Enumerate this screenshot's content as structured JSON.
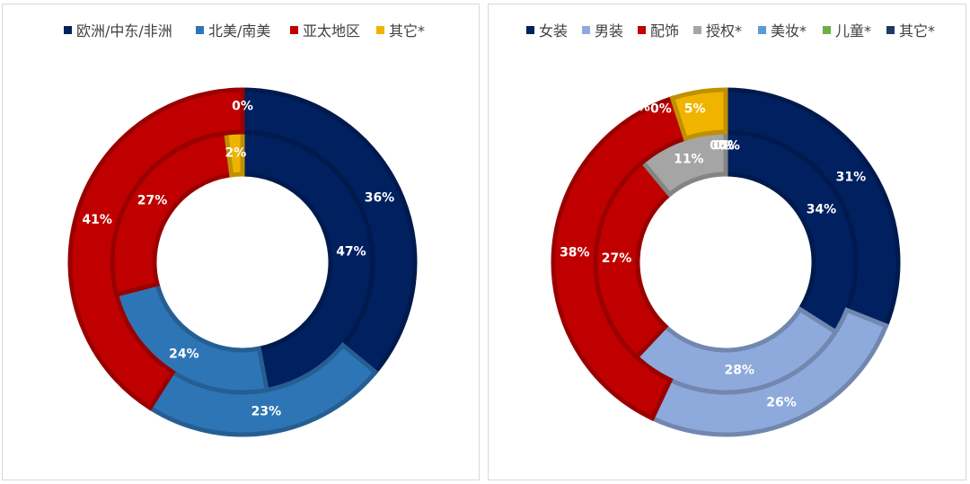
{
  "chart_data": [
    {
      "type": "pie",
      "subtype": "doughnut",
      "legend_position": "top",
      "legend": [
        {
          "name": "欧洲/中东/非洲",
          "color": "#002060"
        },
        {
          "name": "北美/南美",
          "color": "#2E75B6"
        },
        {
          "name": "亚太地区",
          "color": "#C00000"
        },
        {
          "name": "其它*",
          "color": "#F0B400"
        }
      ],
      "rings": [
        {
          "ring": "inner",
          "values": [
            47,
            24,
            27,
            2
          ],
          "labels": [
            "47%",
            "24%",
            "27%",
            "2%"
          ]
        },
        {
          "ring": "outer",
          "values": [
            36,
            23,
            41,
            0
          ],
          "labels": [
            "36%",
            "23%",
            "41%",
            "0%"
          ]
        }
      ]
    },
    {
      "type": "pie",
      "subtype": "doughnut",
      "legend_position": "top",
      "legend": [
        {
          "name": "女装",
          "color": "#002060"
        },
        {
          "name": "男装",
          "color": "#8EA9DB"
        },
        {
          "name": "配饰",
          "color": "#C00000"
        },
        {
          "name": "授权*",
          "color": "#A5A5A5"
        },
        {
          "name": "美妆*",
          "color": "#5B9BD5"
        },
        {
          "name": "儿童*",
          "color": "#70AD47"
        },
        {
          "name": "其它*",
          "color": "#1F3864"
        }
      ],
      "rings": [
        {
          "ring": "inner",
          "values": [
            34,
            28,
            27,
            11,
            0,
            0,
            0
          ],
          "labels": [
            "34%",
            "28%",
            "27%",
            "11%",
            "0%",
            "0%",
            "0%"
          ]
        },
        {
          "ring": "outer",
          "values": [
            31,
            26,
            38,
            0,
            0,
            0,
            5
          ],
          "labels": [
            "31%",
            "26%",
            "38%",
            "0%",
            "0%",
            "0%",
            "5%"
          ],
          "colors": [
            "#002060",
            "#8EA9DB",
            "#C00000",
            "#A5A5A5",
            "#5B9BD5",
            "#70AD47",
            "#F0B400"
          ]
        }
      ]
    }
  ]
}
